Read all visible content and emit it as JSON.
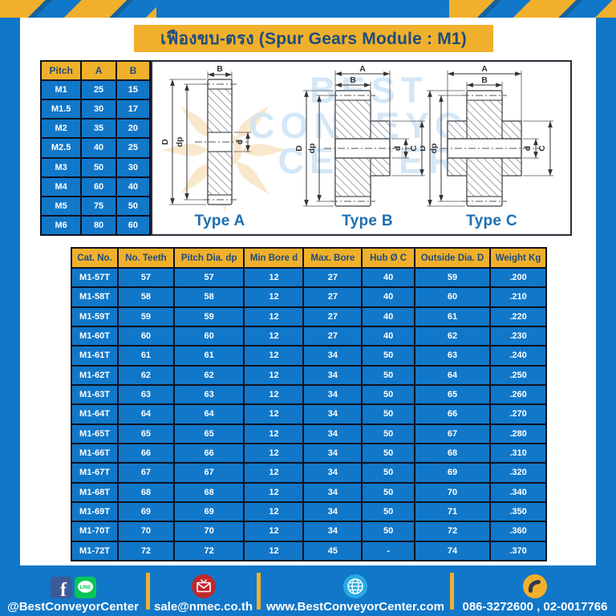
{
  "page": {
    "title": "เฟืองขบ-ตรง (Spur Gears Module : M1)"
  },
  "colors": {
    "frame_blue": "#1177C9",
    "accent_yellow": "#F0B02B",
    "navy_text": "#1E4C7E",
    "grid_border": "#0E1220",
    "type_label_blue": "#1C6FB2",
    "facebook_blue": "#3D5A98",
    "line_green": "#06C755",
    "email_red": "#C1272D",
    "globe_blue": "#29ABE2"
  },
  "pitch_table": {
    "headers": [
      "Pitch",
      "A",
      "B"
    ],
    "rows": [
      [
        "M1",
        "25",
        "15"
      ],
      [
        "M1.5",
        "30",
        "17"
      ],
      [
        "M2",
        "35",
        "20"
      ],
      [
        "M2.5",
        "40",
        "25"
      ],
      [
        "M3",
        "50",
        "30"
      ],
      [
        "M4",
        "60",
        "40"
      ],
      [
        "M5",
        "75",
        "50"
      ],
      [
        "M6",
        "80",
        "60"
      ]
    ]
  },
  "drawings": {
    "watermark": [
      "BEST",
      "CONVEYOR",
      "CENTER"
    ],
    "types": [
      {
        "label": "Type A"
      },
      {
        "label": "Type B"
      },
      {
        "label": "Type C"
      }
    ],
    "dims": {
      "A": "A",
      "B": "B",
      "D": "D",
      "dp": "dp",
      "d": "d",
      "C": "C"
    }
  },
  "main_table": {
    "headers": [
      "Cat. No.",
      "No. Teeth",
      "Pitch Dia. dp",
      "Min Bore d",
      "Max. Bore",
      "Hub Ø C",
      "Outside Dia. D",
      "Weight Kg"
    ],
    "rows": [
      [
        "M1-57T",
        "57",
        "57",
        "12",
        "27",
        "40",
        "59",
        ".200"
      ],
      [
        "M1-58T",
        "58",
        "58",
        "12",
        "27",
        "40",
        "60",
        ".210"
      ],
      [
        "M1-59T",
        "59",
        "59",
        "12",
        "27",
        "40",
        "61",
        ".220"
      ],
      [
        "M1-60T",
        "60",
        "60",
        "12",
        "27",
        "40",
        "62",
        ".230"
      ],
      [
        "M1-61T",
        "61",
        "61",
        "12",
        "34",
        "50",
        "63",
        ".240"
      ],
      [
        "M1-62T",
        "62",
        "62",
        "12",
        "34",
        "50",
        "64",
        ".250"
      ],
      [
        "M1-63T",
        "63",
        "63",
        "12",
        "34",
        "50",
        "65",
        ".260"
      ],
      [
        "M1-64T",
        "64",
        "64",
        "12",
        "34",
        "50",
        "66",
        ".270"
      ],
      [
        "M1-65T",
        "65",
        "65",
        "12",
        "34",
        "50",
        "67",
        ".280"
      ],
      [
        "M1-66T",
        "66",
        "66",
        "12",
        "34",
        "50",
        "68",
        ".310"
      ],
      [
        "M1-67T",
        "67",
        "67",
        "12",
        "34",
        "50",
        "69",
        ".320"
      ],
      [
        "M1-68T",
        "68",
        "68",
        "12",
        "34",
        "50",
        "70",
        ".340"
      ],
      [
        "M1-69T",
        "69",
        "69",
        "12",
        "34",
        "50",
        "71",
        ".350"
      ],
      [
        "M1-70T",
        "70",
        "70",
        "12",
        "34",
        "50",
        "72",
        ".360"
      ],
      [
        "M1-72T",
        "72",
        "72",
        "12",
        "45",
        "-",
        "74",
        ".370"
      ]
    ]
  },
  "footer": {
    "facebook_handle": "@BestConveyorCenter",
    "facebook_icon_letter": "f",
    "line_icon_text": "LINE",
    "email": "sale@nmec.co.th",
    "website": "www.BestConveyorCenter.com",
    "phone": "086-3272600 , 02-0017766"
  }
}
